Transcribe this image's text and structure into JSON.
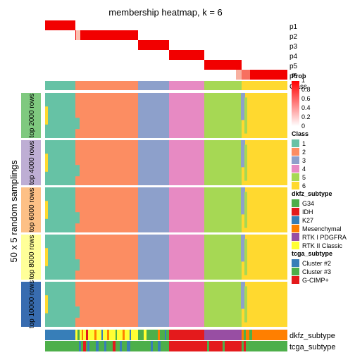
{
  "chart_data": {
    "type": "heatmap",
    "title": "membership heatmap, k = 6",
    "ylabel": "50 x 5 random samplings",
    "prob_rows": [
      "p1",
      "p2",
      "p3",
      "p4",
      "p5",
      "p6"
    ],
    "class_row_label": "Class",
    "row_groups": [
      "top 2000 rows",
      "top 4000 rows",
      "top 6000 rows",
      "top 8000 rows",
      "top 10000 rows"
    ],
    "group_colors": [
      "#7FC97F",
      "#BEAED4",
      "#FDC086",
      "#FFFF99",
      "#386CB0"
    ],
    "class_block_widths": [
      43,
      89,
      44,
      50,
      53,
      65
    ],
    "annotation_rows": [
      "dkfz_subtype",
      "tcga_subtype"
    ],
    "legends": {
      "prob": {
        "title": "Prob",
        "ticks": [
          "1",
          "0.8",
          "0.6",
          "0.4",
          "0.2",
          "0"
        ],
        "colors": [
          "#ff0000",
          "#ffffff"
        ]
      },
      "class": {
        "title": "Class",
        "items": [
          {
            "label": "1",
            "color": "#66C2A5"
          },
          {
            "label": "2",
            "color": "#FC8D62"
          },
          {
            "label": "3",
            "color": "#8DA0CB"
          },
          {
            "label": "4",
            "color": "#E78AC3"
          },
          {
            "label": "5",
            "color": "#A6D854"
          },
          {
            "label": "6",
            "color": "#FFD92F"
          }
        ]
      },
      "dkfz_subtype": {
        "title": "dkfz_subtype",
        "items": [
          {
            "label": "G34",
            "color": "#4DAF4A"
          },
          {
            "label": "IDH",
            "color": "#E41A1C"
          },
          {
            "label": "K27",
            "color": "#377EB8"
          },
          {
            "label": "Mesenchymal",
            "color": "#FF7F00"
          },
          {
            "label": "RTK I PDGFRA",
            "color": "#984EA3"
          },
          {
            "label": "RTK II Classic",
            "color": "#FFFF33"
          }
        ]
      },
      "tcga_subtype": {
        "title": "tcga_subtype",
        "items": [
          {
            "label": "Cluster #2",
            "color": "#377EB8"
          },
          {
            "label": "Cluster #3",
            "color": "#4DAF4A"
          },
          {
            "label": "G-CIMP+",
            "color": "#E41A1C"
          }
        ]
      }
    }
  }
}
